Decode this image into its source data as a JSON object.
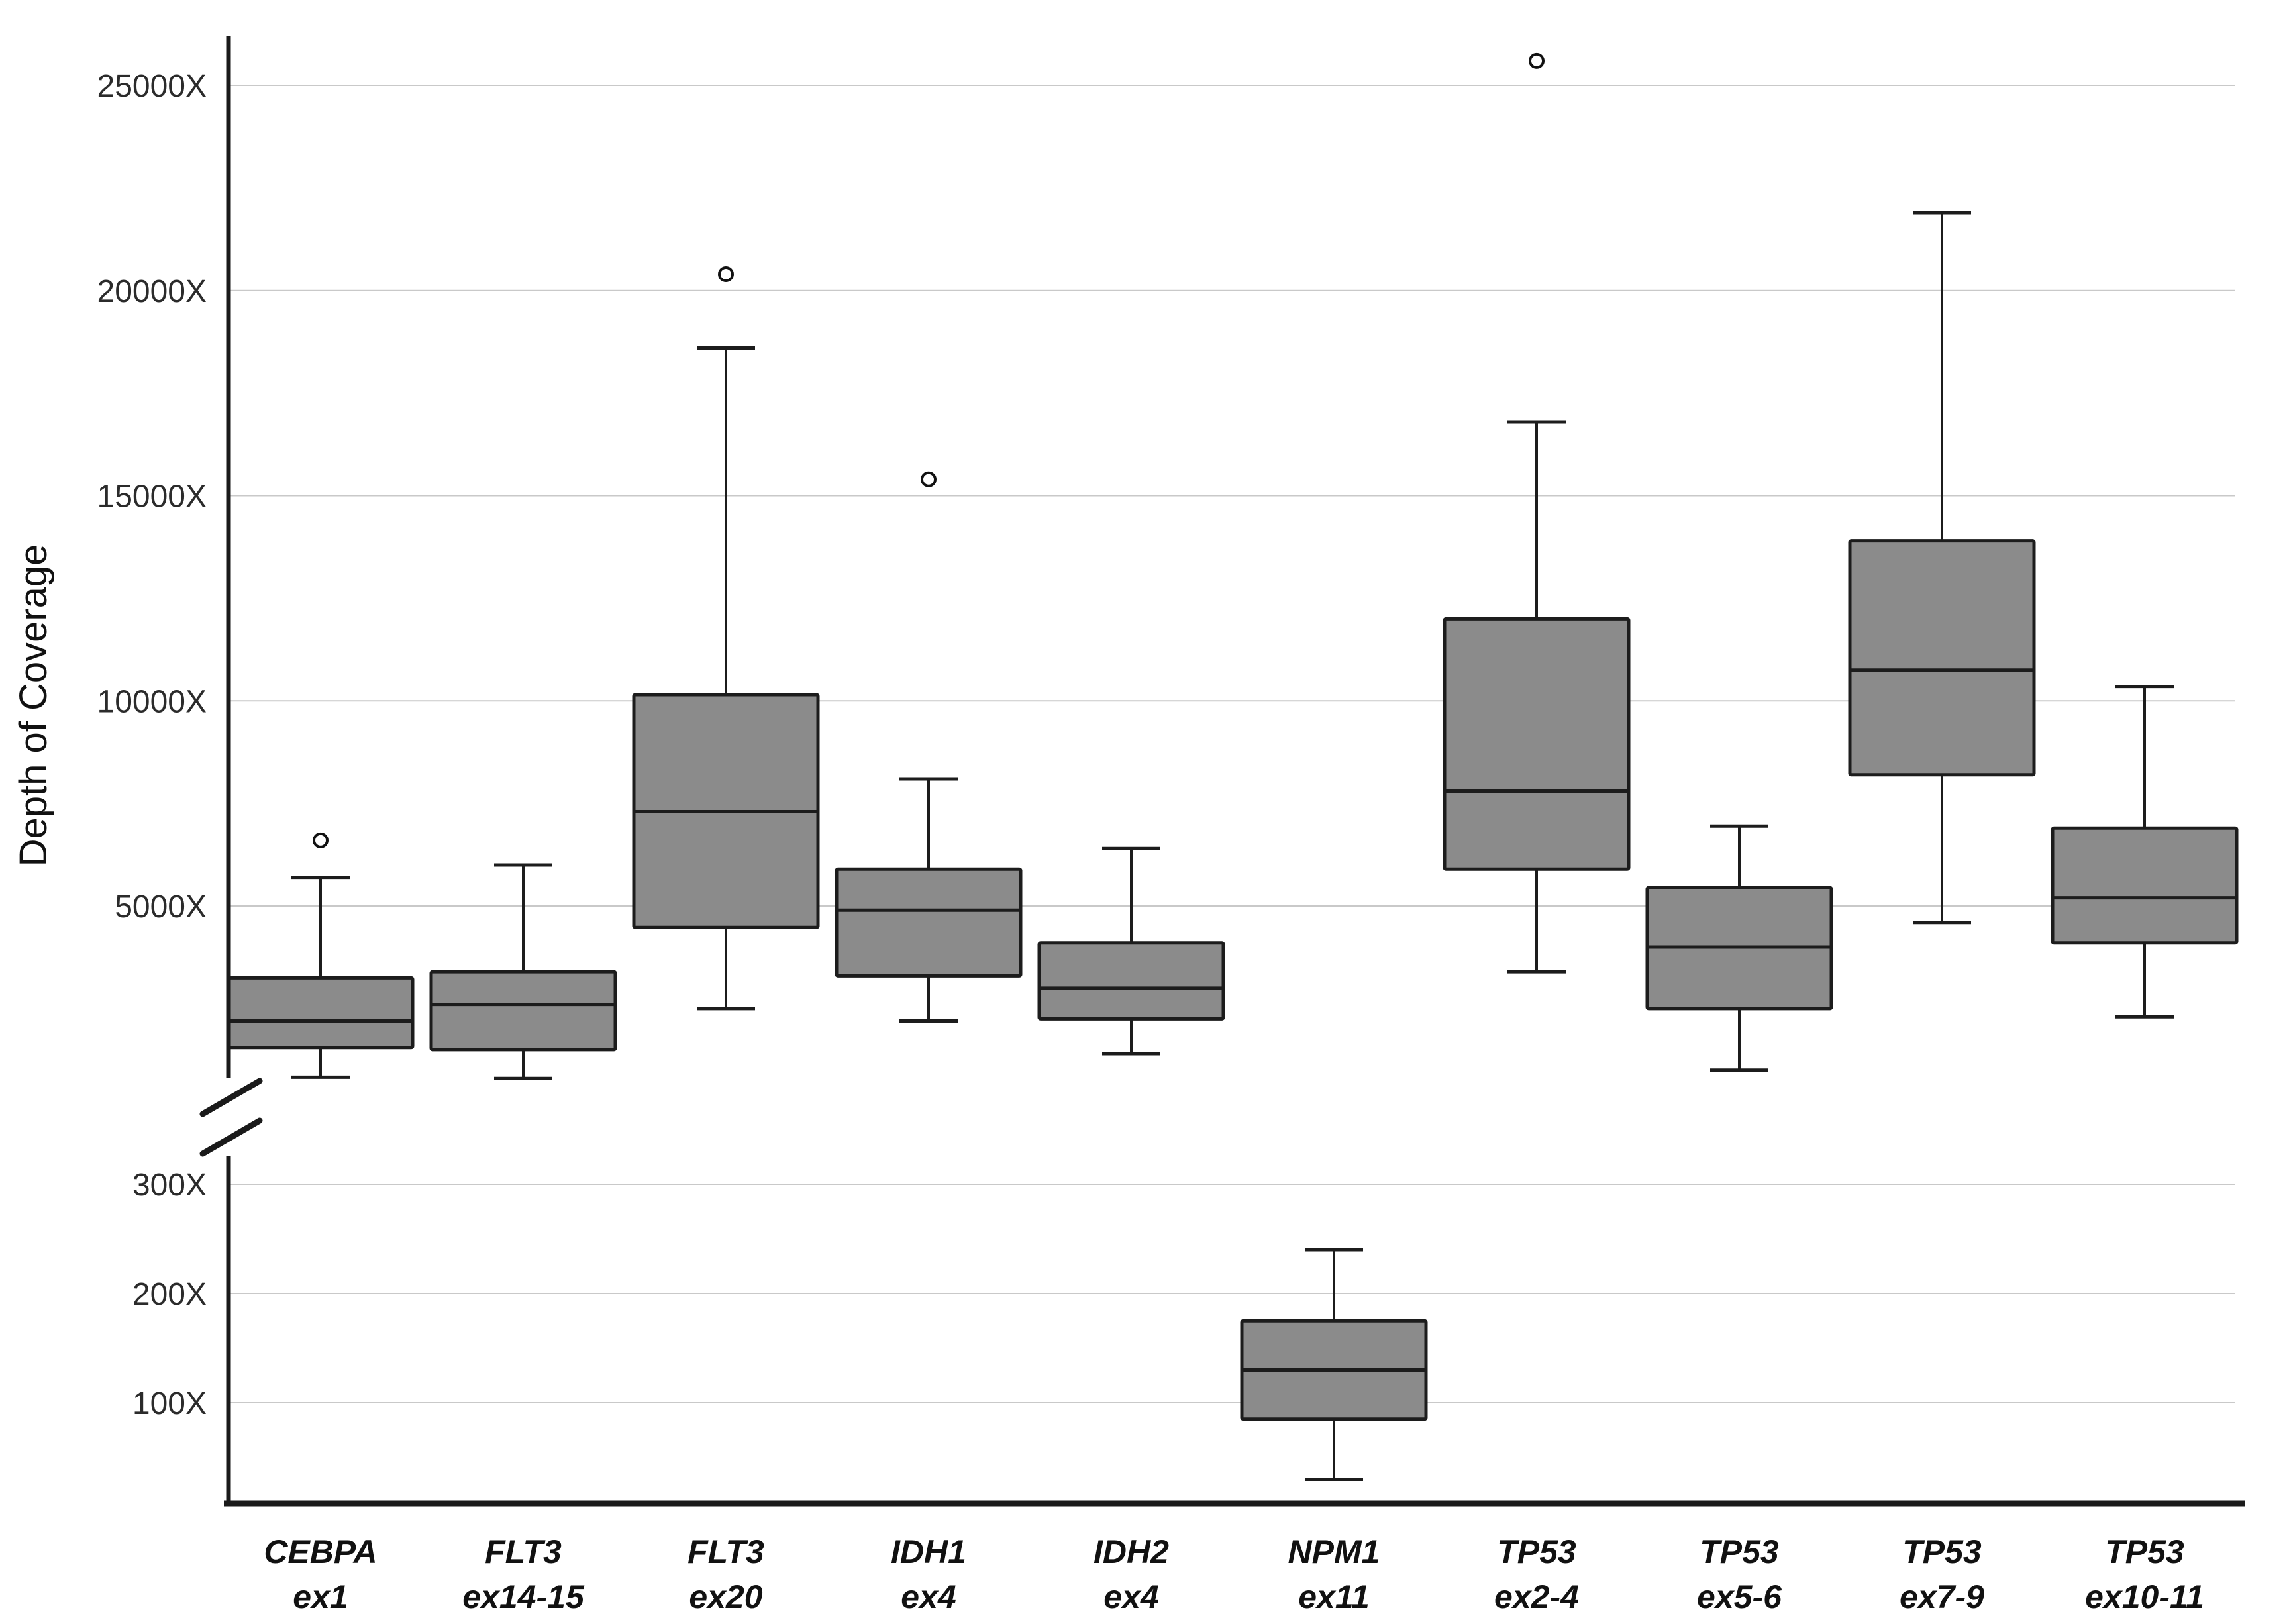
{
  "figure": {
    "y_axis_title": "Depth of Coverage"
  },
  "chart_data": {
    "type": "boxplot",
    "title": "",
    "xlabel": "",
    "ylabel": "Depth of Coverage",
    "layout_hints": {
      "grid": "horizontal-only",
      "broken_y_axis": true,
      "upper_axis_range": [
        400,
        26500
      ],
      "lower_axis_range": [
        0,
        330
      ],
      "legend": "none"
    },
    "axis": {
      "upper_ticks": [
        {
          "label": "25000X",
          "value": 25000
        },
        {
          "label": "20000X",
          "value": 20000
        },
        {
          "label": "15000X",
          "value": 15000
        },
        {
          "label": "10000X",
          "value": 10000
        },
        {
          "label": "5000X",
          "value": 5000
        }
      ],
      "lower_ticks": [
        {
          "label": "300X",
          "value": 300
        },
        {
          "label": "200X",
          "value": 200
        },
        {
          "label": "100X",
          "value": 100
        }
      ]
    },
    "series": [
      {
        "gene": "CEBPA",
        "exon": "ex1",
        "whisker_low": 830,
        "q1": 1550,
        "median": 2200,
        "q3": 3250,
        "whisker_high": 5700,
        "outliers": [
          6600
        ]
      },
      {
        "gene": "FLT3",
        "exon": "ex14-15",
        "whisker_low": 800,
        "q1": 1500,
        "median": 2600,
        "q3": 3400,
        "whisker_high": 6000,
        "outliers": []
      },
      {
        "gene": "FLT3",
        "exon": "ex20",
        "whisker_low": 2500,
        "q1": 4480,
        "median": 7300,
        "q3": 10150,
        "whisker_high": 18600,
        "outliers": [
          20400
        ]
      },
      {
        "gene": "IDH1",
        "exon": "ex4",
        "whisker_low": 2200,
        "q1": 3300,
        "median": 4900,
        "q3": 5900,
        "whisker_high": 8100,
        "outliers": [
          15400
        ]
      },
      {
        "gene": "IDH2",
        "exon": "ex4",
        "whisker_low": 1400,
        "q1": 2250,
        "median": 3000,
        "q3": 4100,
        "whisker_high": 6400,
        "outliers": []
      },
      {
        "gene": "NPM1",
        "exon": "ex11",
        "whisker_low": 30,
        "q1": 85,
        "median": 130,
        "q3": 175,
        "whisker_high": 240,
        "outliers": []
      },
      {
        "gene": "TP53",
        "exon": "ex2-4",
        "whisker_low": 3400,
        "q1": 5900,
        "median": 7800,
        "q3": 12000,
        "whisker_high": 16800,
        "outliers": [
          25600
        ]
      },
      {
        "gene": "TP53",
        "exon": "ex5-6",
        "whisker_low": 1000,
        "q1": 2500,
        "median": 4000,
        "q3": 5450,
        "whisker_high": 6950,
        "outliers": []
      },
      {
        "gene": "TP53",
        "exon": "ex7-9",
        "whisker_low": 4600,
        "q1": 8200,
        "median": 10750,
        "q3": 13900,
        "whisker_high": 21900,
        "outliers": []
      },
      {
        "gene": "TP53",
        "exon": "ex10-11",
        "whisker_low": 2300,
        "q1": 4100,
        "median": 5200,
        "q3": 6900,
        "whisker_high": 10350,
        "outliers": []
      }
    ],
    "colors": {
      "box_fill": "#8b8b8b",
      "box_stroke": "#1c1c1c",
      "median_stroke": "#1c1c1c",
      "whisker_stroke": "#1c1c1c",
      "gridline": "#c9c9c9",
      "axis": "#1a1a1a",
      "text": "#2b2b2b",
      "outlier_fill": "#ffffff",
      "outlier_stroke": "#111111",
      "background": "#ffffff"
    }
  }
}
